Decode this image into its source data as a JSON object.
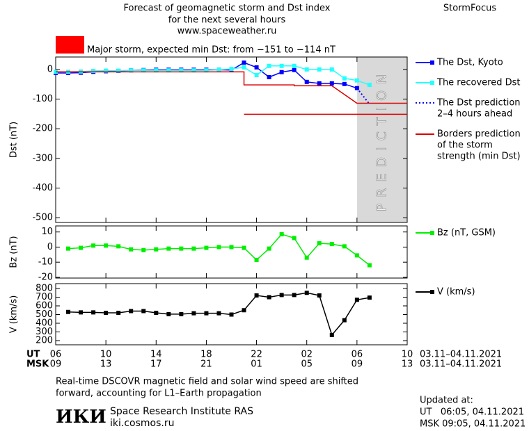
{
  "header": {
    "title_lines": [
      "Forecast of geomagnetic storm and Dst index",
      "for the next several hours",
      "www.spaceweather.ru"
    ],
    "brand": "StormFocus",
    "storm_label": "Major storm, expected min Dst: from −151 to −114 nT",
    "storm_color": "#ff0000"
  },
  "chart_data": [
    {
      "type": "line",
      "ylabel": "Dst (nT)",
      "xlim": [
        0,
        28
      ],
      "ylim": [
        -516,
        42
      ],
      "xticks": [
        0,
        4,
        8,
        12,
        16,
        20,
        24,
        28
      ],
      "yticks": [
        0,
        -100,
        -200,
        -300,
        -400,
        -500
      ],
      "prediction_band": {
        "x": [
          24,
          28
        ],
        "label": "PREDICTION",
        "color": "#d9d9d9"
      },
      "series": [
        {
          "name": "The Dst, Kyoto",
          "color": "#0000ff",
          "marker": "square",
          "x": [
            0,
            1,
            2,
            3,
            4,
            5,
            6,
            7,
            8,
            9,
            10,
            11,
            12,
            13,
            14,
            15,
            16,
            17,
            18,
            19,
            20,
            21,
            22,
            23,
            24
          ],
          "values": [
            -12,
            -12,
            -11,
            -8,
            -6,
            -5,
            -3,
            -2,
            -1,
            -1,
            -1,
            -1,
            -1,
            -1,
            -2,
            23,
            7,
            -26,
            -9,
            -2,
            -42,
            -47,
            -47,
            -49,
            -63
          ]
        },
        {
          "name": "The recovered Dst",
          "color": "#22ffff",
          "marker": "square",
          "x": [
            0,
            1,
            2,
            3,
            4,
            5,
            6,
            7,
            8,
            9,
            10,
            11,
            12,
            13,
            14,
            15,
            16,
            17,
            18,
            19,
            20,
            21,
            22,
            23,
            24,
            25
          ],
          "values": [
            -8,
            -8,
            -7,
            -5,
            -4,
            -4,
            -3,
            -3,
            -3,
            -3,
            -3,
            -3,
            -3,
            -1,
            2,
            7,
            -19,
            12,
            12,
            12,
            0,
            0,
            0,
            -30,
            -37,
            -52
          ]
        },
        {
          "name": "The Dst prediction",
          "legend_extra": [
            "2–4 hours ahead"
          ],
          "color": "#0000ff",
          "dash": true,
          "x": [
            24,
            25
          ],
          "values": [
            -63,
            -117
          ]
        },
        {
          "name": "Borders prediction",
          "legend_extra": [
            "of the storm",
            "strength (min Dst)"
          ],
          "color": "#dd0000",
          "x": [
            0,
            15,
            15,
            19,
            19,
            22,
            24,
            28
          ],
          "values": [
            -8,
            -8,
            -52,
            -52,
            -55,
            -55,
            -114,
            -114
          ]
        },
        {
          "color": "#dd0000",
          "x": [
            15,
            28
          ],
          "values": [
            -151,
            -151
          ]
        }
      ]
    },
    {
      "type": "line",
      "ylabel": "Bz (nT)",
      "xlim": [
        0,
        28
      ],
      "ylim": [
        -20.5,
        14
      ],
      "xticks": [
        0,
        4,
        8,
        12,
        16,
        20,
        24,
        28
      ],
      "yticks": [
        10,
        0,
        -10,
        -20
      ],
      "series": [
        {
          "name": "Bz (nT, GSM)",
          "color": "#00ee00",
          "marker": "square",
          "x": [
            1,
            2,
            3,
            4,
            5,
            6,
            7,
            8,
            9,
            10,
            11,
            12,
            13,
            14,
            15,
            16,
            17,
            18,
            19,
            20,
            21,
            22,
            23,
            24,
            25
          ],
          "values": [
            -1,
            -0.5,
            1,
            1,
            0.5,
            -1.5,
            -2,
            -1.5,
            -1,
            -1,
            -1,
            -0.5,
            0,
            0,
            -0.5,
            -8.5,
            -1,
            8.5,
            6,
            -7,
            2.5,
            2,
            0.5,
            -5.5,
            -12
          ]
        }
      ]
    },
    {
      "type": "line",
      "ylabel": "V (km/s)",
      "xlim": [
        0,
        28
      ],
      "ylim": [
        152,
        856
      ],
      "xticks": [
        {
          "value": 0,
          "label": "06"
        },
        {
          "value": 4,
          "label": "10"
        },
        {
          "value": 8,
          "label": "14"
        },
        {
          "value": 12,
          "label": "18"
        },
        {
          "value": 16,
          "label": "22"
        },
        {
          "value": 20,
          "label": "02"
        },
        {
          "value": 24,
          "label": "06"
        },
        {
          "value": 28,
          "label": "10"
        }
      ],
      "msk_labels": [
        "09",
        "13",
        "17",
        "21",
        "01",
        "05",
        "09",
        "13"
      ],
      "ut_label": "UT",
      "msk_label": "MSK",
      "date_range": "03.11–04.11.2021",
      "yticks": [
        200,
        300,
        400,
        500,
        600,
        700,
        800
      ],
      "series": [
        {
          "name": "V (km/s)",
          "color": "#000000",
          "marker": "square",
          "x": [
            1,
            2,
            3,
            4,
            5,
            6,
            7,
            8,
            9,
            10,
            11,
            12,
            13,
            14,
            15,
            16,
            17,
            18,
            19,
            20,
            21,
            22,
            23,
            24,
            25
          ],
          "values": [
            530,
            525,
            525,
            520,
            520,
            540,
            540,
            520,
            505,
            505,
            515,
            515,
            515,
            500,
            550,
            720,
            700,
            725,
            725,
            750,
            720,
            265,
            435,
            670,
            695
          ]
        }
      ]
    }
  ],
  "footer": {
    "note_lines": [
      "Real-time DSCOVR magnetic field and solar wind speed are shifted",
      "forward, accounting for L1–Earth propagation"
    ],
    "logo": "ИКИ",
    "institute": "Space Research Institute RAS",
    "site": "iki.cosmos.ru",
    "updated_lines": [
      "Updated at:",
      "UT   06:05, 04.11.2021",
      "MSK 09:05, 04.11.2021"
    ]
  }
}
